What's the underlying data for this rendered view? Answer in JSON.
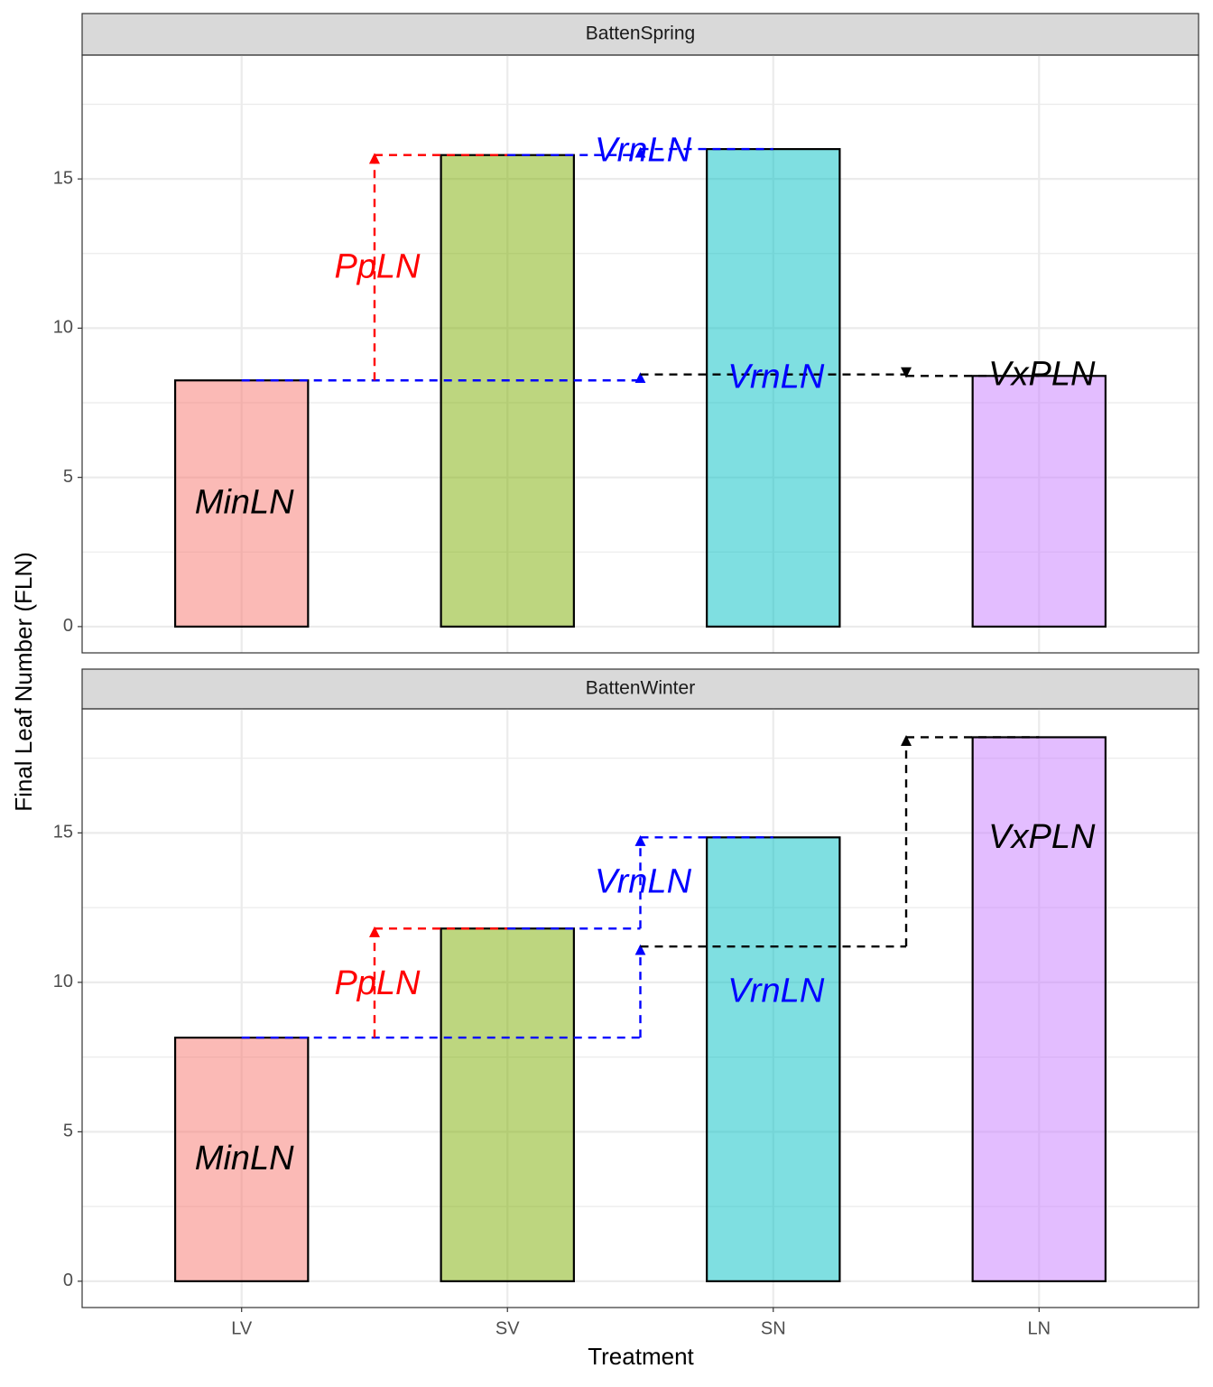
{
  "axis_labels": {
    "x": "Treatment",
    "y": "Final Leaf Number (FLN)"
  },
  "chart_data": [
    {
      "type": "bar",
      "strip": "BattenSpring",
      "values": [
        8.25,
        15.8,
        16.0,
        8.4
      ],
      "colors": [
        "#F8766D",
        "#7CAE00",
        "#00BFC4",
        "#C77CFF"
      ],
      "ylim": [
        -0.88,
        19.15
      ],
      "yticks": [
        0,
        5,
        10,
        15
      ],
      "grid": true,
      "annotations": [
        {
          "text": "MinLN",
          "color": "#000000"
        },
        {
          "text": "PpLN",
          "color": "#FF0000"
        },
        {
          "text": "VrnLN",
          "color": "#0000FF"
        },
        {
          "text": "VrnLN",
          "color": "#0000FF"
        },
        {
          "text": "VxPLN",
          "color": "#000000"
        }
      ]
    },
    {
      "type": "bar",
      "strip": "BattenWinter",
      "categories": [
        "LV",
        "SV",
        "SN",
        "LN"
      ],
      "values": [
        8.15,
        11.8,
        14.85,
        18.2
      ],
      "colors": [
        "#F8766D",
        "#7CAE00",
        "#00BFC4",
        "#C77CFF"
      ],
      "ylim": [
        -0.88,
        19.15
      ],
      "yticks": [
        0,
        5,
        10,
        15
      ],
      "grid": true,
      "annotations": [
        {
          "text": "MinLN",
          "color": "#000000"
        },
        {
          "text": "PpLN",
          "color": "#FF0000"
        },
        {
          "text": "VrnLN",
          "color": "#0000FF"
        },
        {
          "text": "VrnLN",
          "color": "#0000FF"
        },
        {
          "text": "VxPLN",
          "color": "#000000"
        }
      ]
    }
  ]
}
